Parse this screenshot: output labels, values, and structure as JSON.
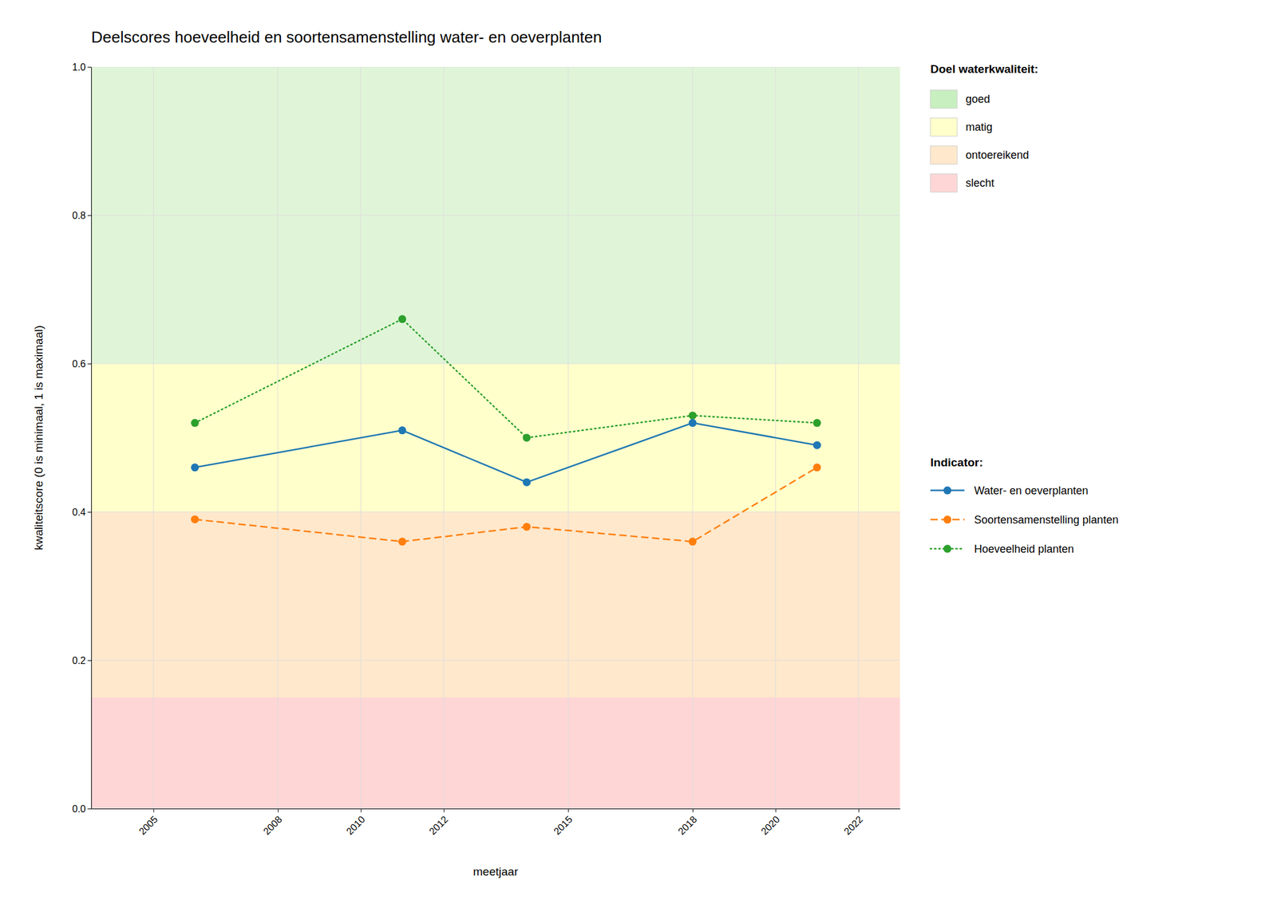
{
  "chart_data": {
    "type": "line",
    "title": "Deelscores hoeveelheid en soortensamenstelling water- en oeverplanten",
    "x_label": "meetjaar",
    "y_label": "kwaliteitscore (0 is minimaal, 1 is maximaal)",
    "x": [
      2006,
      2011,
      2014,
      2018,
      2021
    ],
    "xlim": [
      2003.5,
      2023
    ],
    "xticks": [
      2005,
      2008,
      2010,
      2012,
      2015,
      2018,
      2020,
      2022
    ],
    "ylim": [
      0.0,
      1.0
    ],
    "yticks": [
      {
        "value": 0.0,
        "label": "0.0"
      },
      0.2,
      0.4,
      0.6,
      0.8,
      {
        "value": 1.0,
        "label": "1.0"
      }
    ],
    "grid": true,
    "legend": "right",
    "bands": [
      {
        "ymin": 0.0,
        "ymax": 0.15,
        "color": "#FFD6D6"
      },
      {
        "ymin": 0.15,
        "ymax": 0.4,
        "color": "#FFE8CC"
      },
      {
        "ymin": 0.4,
        "ymax": 0.6,
        "color": "#FFFFCC"
      },
      {
        "ymin": 0.6,
        "ymax": 1.0,
        "color": "#E0F5D8"
      }
    ],
    "band_legend_title": "Doel waterkwaliteit:",
    "band_legend": [
      {
        "name": "goed",
        "color": "#C8EFC0"
      },
      {
        "name": "matig",
        "color": "#FFFFCC"
      },
      {
        "name": "ontoereikend",
        "color": "#FFE8CC"
      },
      {
        "name": "slecht",
        "color": "#FFD6D6"
      }
    ],
    "series_legend_title": "Indicator:",
    "series": [
      {
        "name": "Water- en oeverplanten",
        "values": [
          0.46,
          0.51,
          0.44,
          0.52,
          0.49
        ],
        "line_style": "solid",
        "marker": "circle"
      },
      {
        "name": "Soortensamenstelling planten",
        "values": [
          0.39,
          0.36,
          0.38,
          0.36,
          0.46
        ],
        "line_style": "dashed",
        "marker": "circle"
      },
      {
        "name": "Hoeveelheid planten",
        "values": [
          0.52,
          0.66,
          0.5,
          0.53,
          0.52
        ],
        "line_style": "dotted",
        "marker": "circle"
      }
    ]
  }
}
